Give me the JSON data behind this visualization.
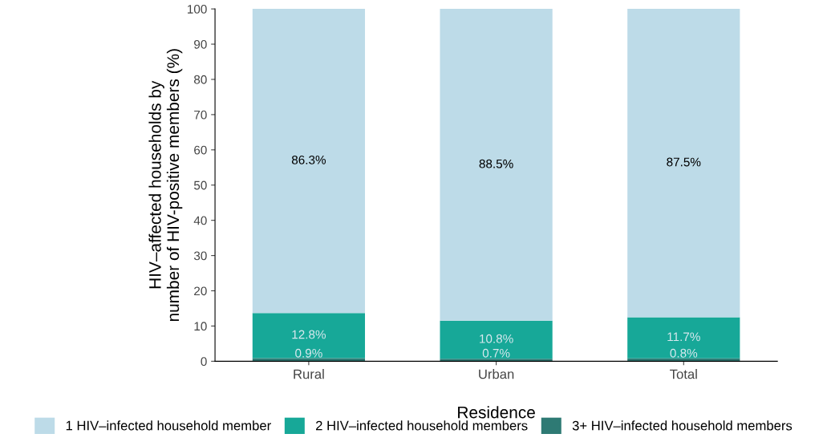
{
  "chart_data": {
    "type": "bar",
    "stacked": true,
    "xlabel": "Residence",
    "ylabel": "HIV–affected households by\nnumber of HIV-positive members (%)",
    "categories": [
      "Rural",
      "Urban",
      "Total"
    ],
    "series": [
      {
        "name": "3+ HIV–infected household members",
        "color": "#2e7a74",
        "values": [
          0.9,
          0.7,
          0.8
        ],
        "value_labels": [
          "0.9%",
          "0.7%",
          "0.8%"
        ]
      },
      {
        "name": "2 HIV–infected household members",
        "color": "#17a898",
        "values": [
          12.8,
          10.8,
          11.7
        ],
        "value_labels": [
          "12.8%",
          "10.8%",
          "11.7%"
        ]
      },
      {
        "name": "1 HIV–infected household member",
        "color": "#bddbe8",
        "values": [
          86.3,
          88.5,
          87.5
        ],
        "value_labels": [
          "86.3%",
          "88.5%",
          "87.5%"
        ]
      }
    ],
    "ylim": [
      0,
      100
    ],
    "yticks": [
      0,
      10,
      20,
      30,
      40,
      50,
      60,
      70,
      80,
      90,
      100
    ],
    "grid": false,
    "legend": "bottom"
  }
}
